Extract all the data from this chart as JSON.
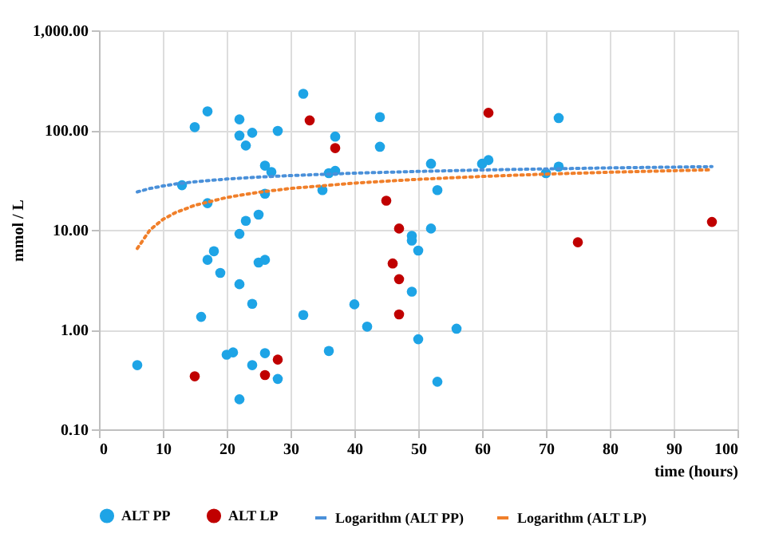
{
  "chart_data": {
    "type": "scatter",
    "xlabel": "time (hours)",
    "ylabel": "mmol / L",
    "xlim": [
      0,
      100
    ],
    "xticks": [
      0,
      10,
      20,
      30,
      40,
      50,
      60,
      70,
      80,
      90,
      100
    ],
    "ylim": [
      0.1,
      1000
    ],
    "yticks": [
      {
        "value": 0.1,
        "label": "0.10"
      },
      {
        "value": 1,
        "label": "1.00"
      },
      {
        "value": 10,
        "label": "10.00"
      },
      {
        "value": 100,
        "label": "100.00"
      },
      {
        "value": 1000,
        "label": "1,000.00"
      }
    ],
    "log": "y",
    "grid": true,
    "legend": "bottom",
    "series": [
      {
        "name": "ALT  PP",
        "marker": "circle",
        "color": "#1ea4e6",
        "x": [
          6,
          13,
          17,
          15,
          17,
          17,
          18,
          16,
          19,
          20,
          21,
          22,
          22,
          23,
          24,
          28,
          26,
          27,
          26,
          22,
          23,
          25,
          25,
          26,
          22,
          24,
          24,
          26,
          28,
          22,
          32,
          32,
          36,
          35,
          37,
          37,
          36,
          40,
          42,
          44,
          44,
          52,
          53,
          60,
          61,
          70,
          72,
          72,
          52,
          49,
          49,
          50,
          49,
          56,
          50,
          53
        ],
        "values": [
          0.44,
          28,
          154,
          107,
          18.5,
          5.0,
          6.1,
          1.34,
          3.7,
          0.56,
          0.59,
          128,
          88,
          70,
          94,
          98,
          44,
          38,
          23,
          9.1,
          12.3,
          14.2,
          4.7,
          5.0,
          2.85,
          1.81,
          0.44,
          0.58,
          0.32,
          0.2,
          231,
          1.4,
          37,
          25,
          86,
          39,
          0.61,
          1.79,
          1.07,
          135,
          68,
          46,
          25,
          46,
          50,
          37,
          43,
          132,
          10.3,
          8.7,
          7.8,
          6.2,
          2.4,
          1.02,
          0.8,
          0.3
        ]
      },
      {
        "name": "ALT  LP",
        "marker": "circle",
        "color": "#c00000",
        "x": [
          15,
          28,
          26,
          33,
          37,
          45,
          47,
          46,
          47,
          47,
          61,
          75,
          96
        ],
        "values": [
          0.34,
          0.5,
          0.35,
          125,
          66,
          19.6,
          10.3,
          4.6,
          3.2,
          1.42,
          149,
          7.5,
          12
        ]
      },
      {
        "name": "Logarithm (ALT PP)",
        "type": "line",
        "marker": "none",
        "line_style": "dotted",
        "color": "#4a90d9",
        "x": [
          6,
          8,
          10,
          12,
          15,
          20,
          25,
          30,
          40,
          50,
          60,
          70,
          80,
          96
        ],
        "values": [
          24,
          26,
          27.5,
          28.8,
          30.3,
          32.3,
          33.8,
          35,
          37,
          38.5,
          39.8,
          40.8,
          41.8,
          43
        ]
      },
      {
        "name": "Logarithm (ALT LP)",
        "type": "line",
        "marker": "none",
        "line_style": "dotted",
        "color": "#f07f2a",
        "x": [
          6,
          8,
          10,
          12,
          15,
          20,
          25,
          30,
          40,
          50,
          60,
          70,
          80,
          96
        ],
        "values": [
          6.5,
          10,
          12.7,
          14.9,
          17.6,
          21.1,
          23.8,
          26,
          29.4,
          32.1,
          34.3,
          36.2,
          37.8,
          40
        ]
      }
    ]
  }
}
